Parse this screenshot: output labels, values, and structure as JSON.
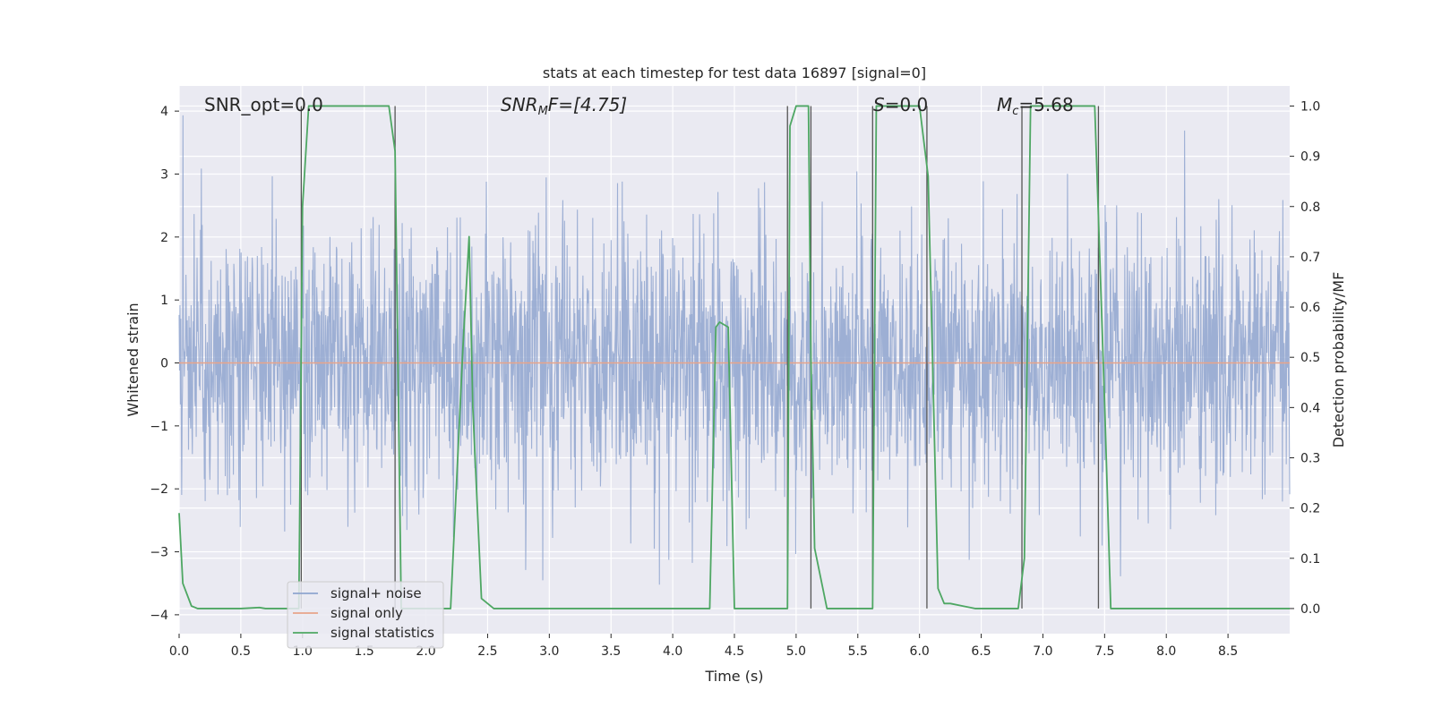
{
  "chart_data": {
    "type": "line",
    "title": "stats at each timestep for test data 16897 [signal=0]",
    "xlabel": "Time (s)",
    "ylabel": "Whitened strain",
    "ylabel_right": "Detection probability/MF",
    "xlim": [
      0.0,
      9.0
    ],
    "ylim": [
      -4.3,
      4.4
    ],
    "ylim_right": [
      -0.05,
      1.04
    ],
    "x_ticks": [
      "0.0",
      "0.5",
      "1.0",
      "1.5",
      "2.0",
      "2.5",
      "3.0",
      "3.5",
      "4.0",
      "4.5",
      "5.0",
      "5.5",
      "6.0",
      "6.5",
      "7.0",
      "7.5",
      "8.0",
      "8.5"
    ],
    "y_ticks": [
      "−4",
      "−3",
      "−2",
      "−1",
      "0",
      "1",
      "2",
      "3",
      "4"
    ],
    "y_ticks_right": [
      "0.0",
      "0.1",
      "0.2",
      "0.3",
      "0.4",
      "0.5",
      "0.6",
      "0.7",
      "0.8",
      "0.9",
      "1.0"
    ],
    "grid": true,
    "legend_position": "lower-left",
    "annotations": {
      "snr_opt": "SNR_opt=0.0",
      "snr_mf_sym": "SNR",
      "snr_mf_sub": "M",
      "snr_mf_rest": "F=[4.75]",
      "s_sym": "S",
      "s_rest": "=0.0",
      "mc_sym": "M",
      "mc_sub": "c",
      "mc_rest": "=5.68"
    },
    "series": [
      {
        "name": "signal+ noise",
        "color": "#8fa5cf",
        "axis": "left",
        "note": "dense noise trace, approx. gaussian, amplitude within about ±4"
      },
      {
        "name": "signal only",
        "color": "#e8a48a",
        "axis": "left",
        "x": [
          0.0,
          9.0
        ],
        "y": [
          0.0,
          0.0
        ]
      },
      {
        "name": "signal statistics",
        "color": "#4ea763",
        "axis": "right",
        "x": [
          0.0,
          0.03,
          0.1,
          0.15,
          0.5,
          0.65,
          0.7,
          0.9,
          0.97,
          1.0,
          1.05,
          1.1,
          1.3,
          1.5,
          1.7,
          1.75,
          1.8,
          1.85,
          2.0,
          2.2,
          2.3,
          2.35,
          2.38,
          2.45,
          2.55,
          3.0,
          3.5,
          4.0,
          4.3,
          4.35,
          4.38,
          4.45,
          4.5,
          4.6,
          4.9,
          4.93,
          4.95,
          5.0,
          5.1,
          5.12,
          5.15,
          5.25,
          5.5,
          5.62,
          5.65,
          5.7,
          6.0,
          6.07,
          6.15,
          6.2,
          6.25,
          6.35,
          6.45,
          6.8,
          6.85,
          6.9,
          7.1,
          7.42,
          7.5,
          7.55,
          8.0,
          8.5,
          9.0
        ],
        "y": [
          0.19,
          0.05,
          0.005,
          0.0,
          0.0,
          0.002,
          0.0,
          0.0,
          0.0,
          0.8,
          1.0,
          1.0,
          1.0,
          1.0,
          1.0,
          0.91,
          0.0,
          0.0,
          0.0,
          0.0,
          0.52,
          0.74,
          0.4,
          0.02,
          0.0,
          0.0,
          0.0,
          0.0,
          0.0,
          0.56,
          0.57,
          0.56,
          0.0,
          0.0,
          0.0,
          0.0,
          0.96,
          1.0,
          1.0,
          0.5,
          0.12,
          0.0,
          0.0,
          0.0,
          1.0,
          1.0,
          1.0,
          0.86,
          0.04,
          0.01,
          0.01,
          0.005,
          0.0,
          0.0,
          0.1,
          1.0,
          1.0,
          1.0,
          0.41,
          0.0,
          0.0,
          0.0,
          0.0
        ]
      }
    ],
    "vlines": [
      0.99,
      1.75,
      4.93,
      5.12,
      5.62,
      6.06,
      6.83,
      7.45
    ]
  }
}
